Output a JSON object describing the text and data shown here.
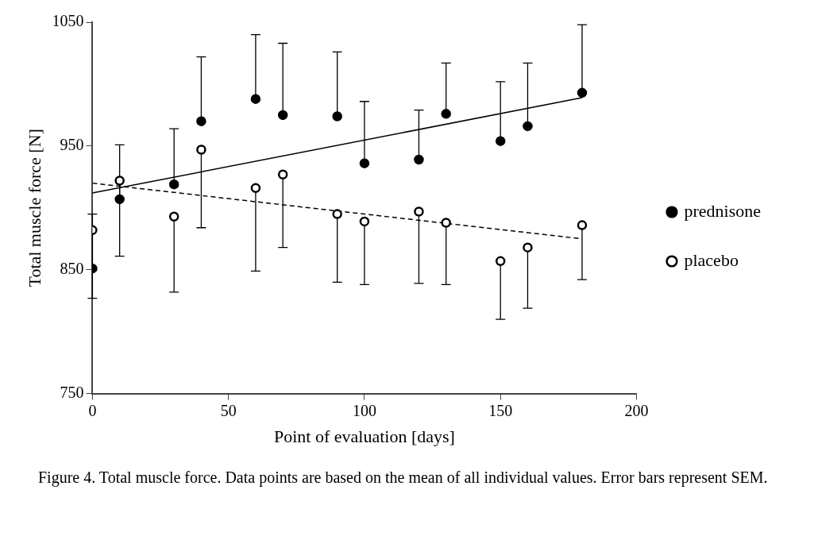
{
  "chart_data": {
    "type": "scatter",
    "xlabel": "Point of evaluation [days]",
    "ylabel": "Total muscle force [N]",
    "xlim": [
      0,
      200
    ],
    "xticks": [
      0,
      50,
      100,
      150,
      200
    ],
    "ylim": [
      750,
      1050
    ],
    "yticks": [
      750,
      850,
      950,
      1050
    ],
    "grid": false,
    "legend": "right",
    "annotations": [
      "Figure 4. Total muscle force. Data points are based on the mean of all individual values. Error bars represent SEM."
    ],
    "series": [
      {
        "name": "prednisone",
        "color": "#000000",
        "marker": "circle",
        "x": [
          0,
          10,
          30,
          40,
          60,
          70,
          90,
          100,
          120,
          130,
          150,
          160,
          180
        ],
        "values": [
          851,
          907,
          919,
          970,
          988,
          975,
          974,
          936,
          939,
          976,
          954,
          966,
          993
        ],
        "errors": [
          [
            851,
            895
          ],
          [
            907,
            951
          ],
          [
            919,
            964
          ],
          [
            970,
            1022
          ],
          [
            988,
            1040
          ],
          [
            975,
            1033
          ],
          [
            974,
            1026
          ],
          [
            936,
            986
          ],
          [
            939,
            979
          ],
          [
            976,
            1017
          ],
          [
            954,
            1002
          ],
          [
            966,
            1017
          ],
          [
            993,
            1048
          ]
        ]
      },
      {
        "name": "placebo",
        "color": "#000000",
        "marker": "circle",
        "x": [
          0,
          10,
          30,
          40,
          60,
          70,
          90,
          100,
          120,
          130,
          150,
          160,
          180
        ],
        "values": [
          882,
          922,
          893,
          947,
          916,
          927,
          895,
          889,
          897,
          888,
          857,
          868,
          886
        ],
        "errors": [
          [
            827,
            882
          ],
          [
            861,
            922
          ],
          [
            832,
            893
          ],
          [
            884,
            947
          ],
          [
            849,
            916
          ],
          [
            868,
            927
          ],
          [
            840,
            895
          ],
          [
            838,
            889
          ],
          [
            839,
            897
          ],
          [
            838,
            888
          ],
          [
            810,
            857
          ],
          [
            819,
            868
          ],
          [
            842,
            886
          ]
        ]
      },
      {
        "type": "line",
        "color": "#000000",
        "line_style": "solid",
        "marker": "none",
        "x": [
          0,
          180
        ],
        "values": [
          912,
          989
        ]
      },
      {
        "type": "line",
        "color": "#000000",
        "line_style": "dashed",
        "marker": "none",
        "x": [
          0,
          180
        ],
        "values": [
          920,
          875
        ]
      }
    ]
  }
}
